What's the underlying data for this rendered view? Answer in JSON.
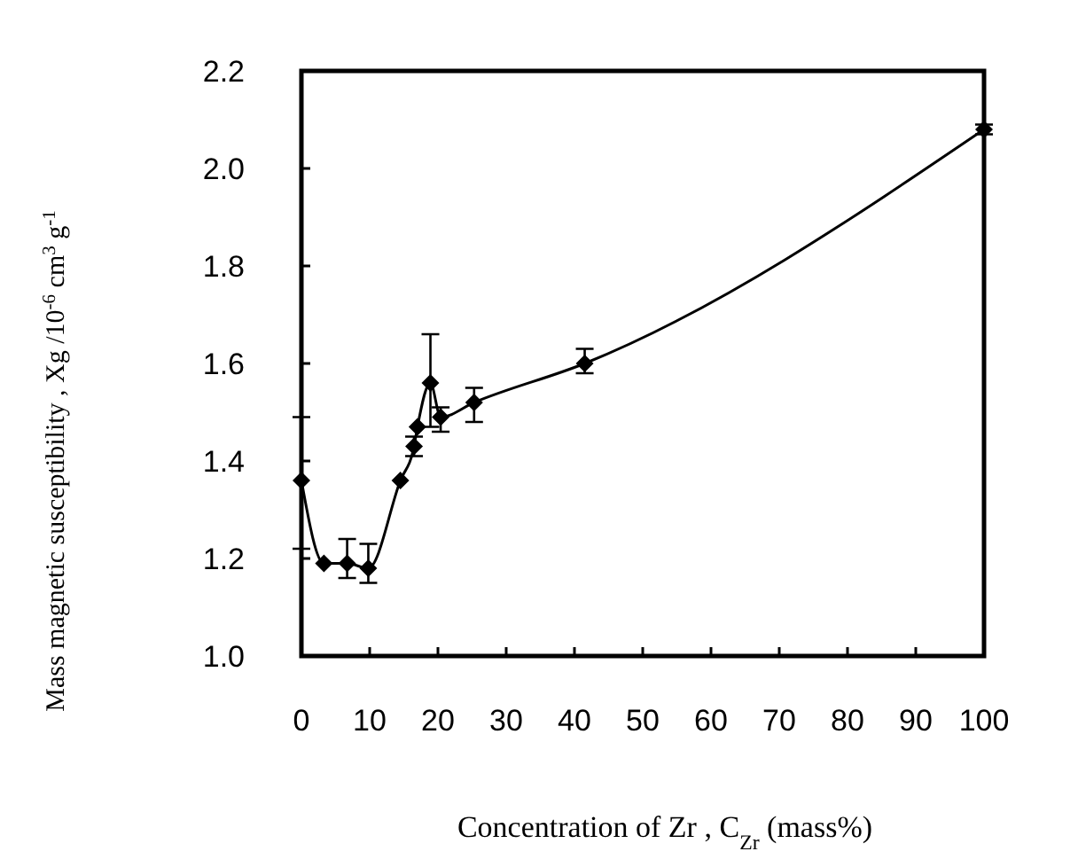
{
  "chart_data": {
    "type": "line",
    "xlabel": "Concentration of Zr , C$_{Zr}$ (mass%)",
    "ylabel": "Mass magnetic susceptibility , Χg /10$^{-6}$ cm$^{3}$ g$^{-1}$",
    "xlim": [
      0,
      100
    ],
    "xticks": [
      0,
      10,
      20,
      30,
      40,
      50,
      60,
      70,
      80,
      90,
      100
    ],
    "ylim": [
      1.0,
      2.2
    ],
    "yticks": [
      {
        "value": 1.0,
        "label": "1.0"
      },
      {
        "value": 1.2,
        "label": "1.2"
      },
      {
        "value": 1.4,
        "label": "1.4"
      },
      {
        "value": 1.6,
        "label": "1.6"
      },
      {
        "value": 1.8,
        "label": "1.8"
      },
      {
        "value": 2.0,
        "label": "2.0"
      },
      {
        "value": 2.2,
        "label": "2.2"
      }
    ],
    "marker": "diamond",
    "line_style": "solid",
    "series": [
      {
        "color": "#000000",
        "x": [
          0,
          3.3,
          6.7,
          9.8,
          14.5,
          16.5,
          17,
          18.9,
          20.4,
          25.3,
          41.5,
          100
        ],
        "values": [
          1.36,
          1.19,
          1.19,
          1.18,
          1.36,
          1.43,
          1.47,
          1.56,
          1.49,
          1.52,
          1.6,
          2.08
        ],
        "errors": [
          [
            1.22,
            1.49
          ],
          null,
          [
            1.16,
            1.24
          ],
          [
            1.15,
            1.23
          ],
          null,
          [
            1.41,
            1.45
          ],
          null,
          [
            1.47,
            1.66
          ],
          [
            1.46,
            1.51
          ],
          [
            1.48,
            1.55
          ],
          [
            1.58,
            1.63
          ],
          [
            2.07,
            2.09
          ]
        ]
      }
    ]
  }
}
